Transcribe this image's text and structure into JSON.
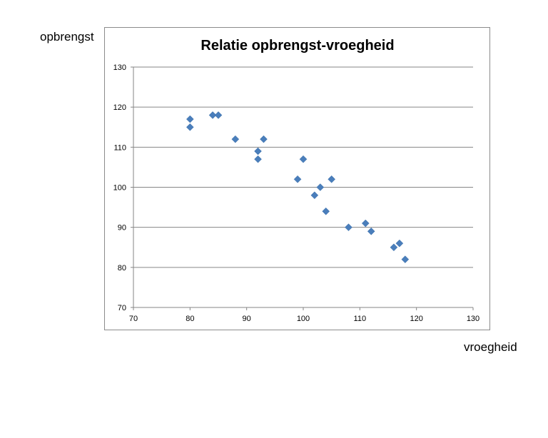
{
  "outer_labels": {
    "y": "opbrengst",
    "x": "vroegheid"
  },
  "chart_data": {
    "type": "scatter",
    "title": "Relatie opbrengst-vroegheid",
    "xlabel": "vroegheid",
    "ylabel": "opbrengst",
    "xlim": [
      70,
      130
    ],
    "ylim": [
      70,
      130
    ],
    "x_ticks": [
      70,
      80,
      90,
      100,
      110,
      120,
      130
    ],
    "y_ticks": [
      70,
      80,
      90,
      100,
      110,
      120,
      130
    ],
    "grid": "horizontal",
    "marker": "diamond",
    "marker_color": "#4a7ebb",
    "gridline_color": "#868686",
    "series": [
      {
        "name": "opbrengst",
        "points": [
          {
            "x": 80,
            "y": 117
          },
          {
            "x": 80,
            "y": 115
          },
          {
            "x": 84,
            "y": 118
          },
          {
            "x": 85,
            "y": 118
          },
          {
            "x": 88,
            "y": 112
          },
          {
            "x": 92,
            "y": 109
          },
          {
            "x": 92,
            "y": 107
          },
          {
            "x": 93,
            "y": 112
          },
          {
            "x": 99,
            "y": 102
          },
          {
            "x": 100,
            "y": 107
          },
          {
            "x": 102,
            "y": 98
          },
          {
            "x": 103,
            "y": 100
          },
          {
            "x": 104,
            "y": 94
          },
          {
            "x": 105,
            "y": 102
          },
          {
            "x": 108,
            "y": 90
          },
          {
            "x": 111,
            "y": 91
          },
          {
            "x": 112,
            "y": 89
          },
          {
            "x": 116,
            "y": 85
          },
          {
            "x": 117,
            "y": 86
          },
          {
            "x": 118,
            "y": 82
          }
        ]
      }
    ]
  }
}
